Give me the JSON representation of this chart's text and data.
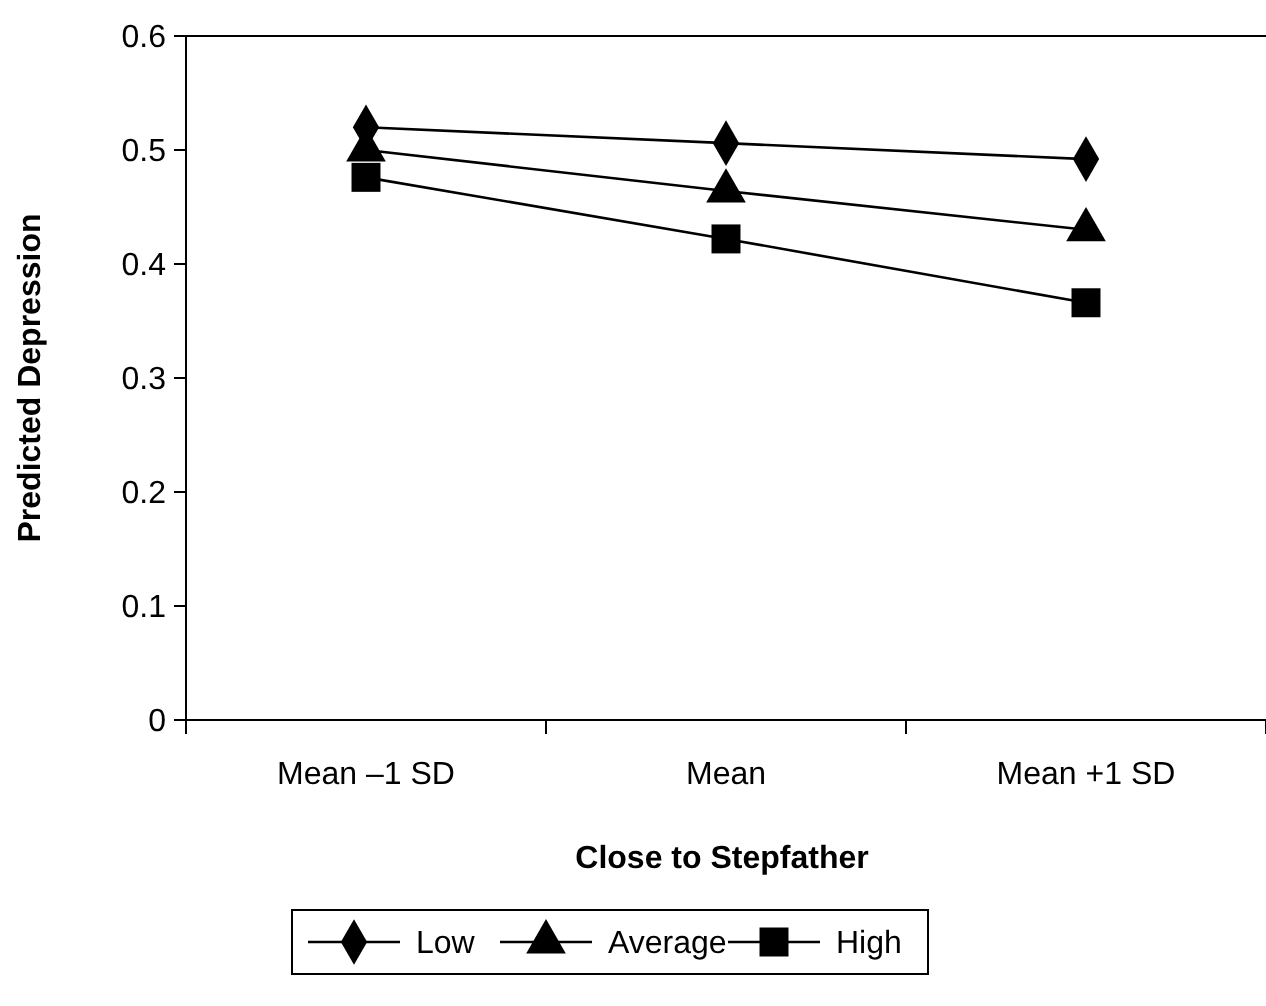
{
  "chart_data": {
    "type": "line",
    "xlabel": "Close to Stepfather",
    "ylabel": "Predicted Depression",
    "categories": [
      "Mean –1 SD",
      "Mean",
      "Mean +1 SD"
    ],
    "ylim": [
      0,
      0.6
    ],
    "yticks": [
      0,
      0.1,
      0.2,
      0.3,
      0.4,
      0.5,
      0.6
    ],
    "grid": false,
    "legend": "bottom",
    "line_style": "solid",
    "series": [
      {
        "name": "Low",
        "color": "#000000",
        "marker": "diamond",
        "values": [
          0.52,
          0.506,
          0.492
        ]
      },
      {
        "name": "Average",
        "color": "#000000",
        "marker": "triangle",
        "values": [
          0.5,
          0.464,
          0.43
        ]
      },
      {
        "name": "High",
        "color": "#000000",
        "marker": "square",
        "values": [
          0.476,
          0.422,
          0.366
        ]
      }
    ]
  }
}
